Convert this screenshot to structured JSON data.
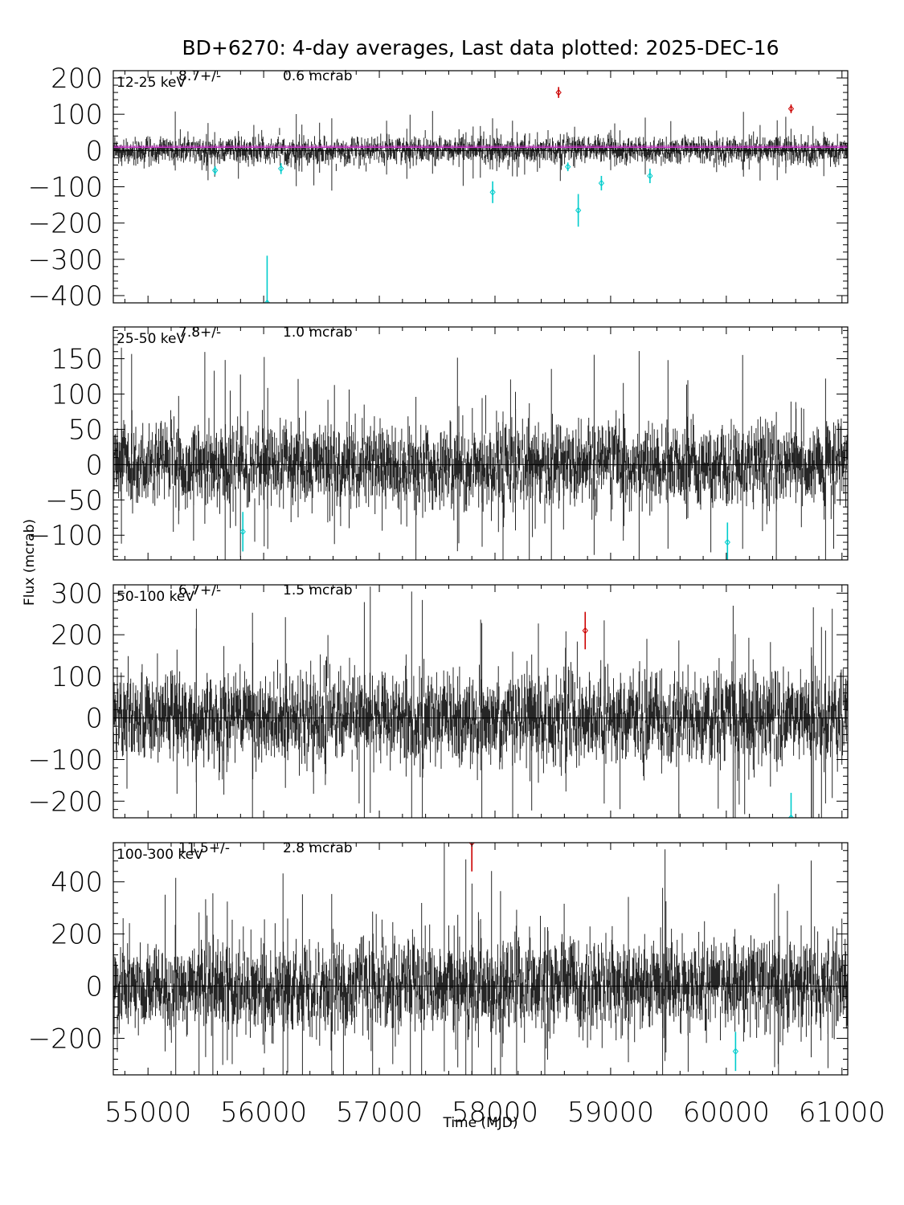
{
  "figure": {
    "title": "BD+6270:  4-day averages,  Last data plotted: 2025-DEC-16",
    "xlabel": "Time (MJD)",
    "ylabel": "Flux (mcrab)"
  },
  "chart_data": [
    {
      "type": "scatter",
      "band_label": "12-25 keV",
      "mean_flux": "8.7",
      "mean_error": "0.6 mcrab",
      "ylim": [
        -420,
        220
      ],
      "yticks": [
        -400,
        -300,
        -200,
        -100,
        0,
        100,
        200
      ],
      "ytick_labels": [
        "−400",
        "−300",
        "−200",
        "−100",
        "0",
        "100",
        "200"
      ],
      "xlim": [
        54700,
        61050
      ],
      "xticks": [
        55000,
        56000,
        57000,
        58000,
        59000,
        60000,
        61000
      ],
      "noise_sigma": 25,
      "mean_line": {
        "value": 8.7,
        "band": 0.6,
        "color": "#cc33cc"
      },
      "outliers_high": [
        {
          "x": 58550,
          "y": 160,
          "err": 15
        },
        {
          "x": 60560,
          "y": 115,
          "err": 12
        }
      ],
      "outliers_low": [
        {
          "x": 55580,
          "y": -55,
          "err": 12
        },
        {
          "x": 56150,
          "y": -50,
          "err": 15
        },
        {
          "x": 57980,
          "y": -115,
          "err": 30
        },
        {
          "x": 58630,
          "y": -45,
          "err": 12
        },
        {
          "x": 58720,
          "y": -165,
          "err": 45
        },
        {
          "x": 58920,
          "y": -90,
          "err": 20
        },
        {
          "x": 59340,
          "y": -70,
          "err": 20
        },
        {
          "x": 56030,
          "y": -420,
          "err": 130
        }
      ]
    },
    {
      "type": "scatter",
      "band_label": "25-50 keV",
      "mean_flux": "7.8",
      "mean_error": "1.0 mcrab",
      "ylim": [
        -135,
        195
      ],
      "yticks": [
        -100,
        -50,
        0,
        50,
        100,
        150
      ],
      "ytick_labels": [
        "−100",
        "−50",
        "0",
        "50",
        "100",
        "150"
      ],
      "xlim": [
        54700,
        61050
      ],
      "xticks": [
        55000,
        56000,
        57000,
        58000,
        59000,
        60000,
        61000
      ],
      "noise_sigma": 38,
      "outliers_high": [],
      "outliers_low": [
        {
          "x": 55820,
          "y": -95,
          "err": 28
        },
        {
          "x": 60010,
          "y": -110,
          "err": 28
        }
      ]
    },
    {
      "type": "scatter",
      "band_label": "50-100 keV",
      "mean_flux": "6.7",
      "mean_error": "1.5 mcrab",
      "ylim": [
        -240,
        320
      ],
      "yticks": [
        -200,
        -100,
        0,
        100,
        200,
        300
      ],
      "ytick_labels": [
        "−200",
        "−100",
        "0",
        "100",
        "200",
        "300"
      ],
      "xlim": [
        54700,
        61050
      ],
      "xticks": [
        55000,
        56000,
        57000,
        58000,
        59000,
        60000,
        61000
      ],
      "noise_sigma": 70,
      "outliers_high": [
        {
          "x": 58780,
          "y": 210,
          "err": 45
        }
      ],
      "outliers_low": [
        {
          "x": 60560,
          "y": -240,
          "err": 60
        }
      ]
    },
    {
      "type": "scatter",
      "band_label": "100-300 keV",
      "mean_flux": "11.5",
      "mean_error": "2.8 mcrab",
      "ylim": [
        -340,
        550
      ],
      "yticks": [
        -200,
        0,
        200,
        400
      ],
      "ytick_labels": [
        "−200",
        "0",
        "200",
        "400"
      ],
      "xlim": [
        54700,
        61050
      ],
      "xticks": [
        55000,
        56000,
        57000,
        58000,
        59000,
        60000,
        61000
      ],
      "noise_sigma": 115,
      "outliers_high": [
        {
          "x": 57800,
          "y": 550,
          "err": 110
        }
      ],
      "outliers_low": [
        {
          "x": 60080,
          "y": -250,
          "err": 75
        }
      ]
    }
  ],
  "xtick_labels": [
    "55000",
    "56000",
    "57000",
    "58000",
    "59000",
    "60000",
    "61000"
  ],
  "colors": {
    "data": "#000000",
    "outlier_high": "#cc0000",
    "outlier_low": "#00cccc",
    "mean_line": "#cc33cc"
  }
}
